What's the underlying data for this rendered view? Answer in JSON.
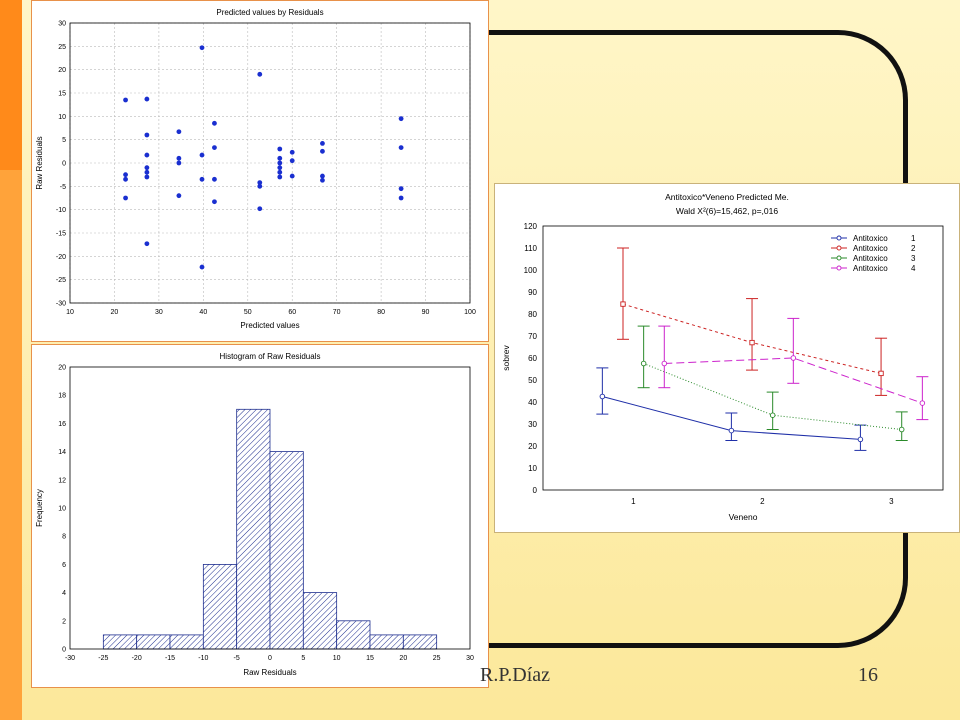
{
  "footer": {
    "author": "R.P.Díaz",
    "page": "16"
  },
  "chart_data": [
    {
      "type": "scatter",
      "title": "Predicted values by Residuals",
      "xlabel": "Predicted values",
      "ylabel": "Raw Residuals",
      "xlim": [
        10,
        100
      ],
      "ylim": [
        -30,
        30
      ],
      "xticks": [
        10,
        20,
        30,
        40,
        50,
        60,
        70,
        80,
        90,
        100
      ],
      "yticks": [
        -30,
        -25,
        -20,
        -15,
        -10,
        -5,
        0,
        5,
        10,
        15,
        20,
        25,
        30
      ],
      "grid": true,
      "points": [
        {
          "x": 22.5,
          "y": 13.5
        },
        {
          "x": 22.5,
          "y": -2.5
        },
        {
          "x": 22.5,
          "y": -3.5
        },
        {
          "x": 22.5,
          "y": -7.5
        },
        {
          "x": 27.3,
          "y": 13.7
        },
        {
          "x": 27.3,
          "y": 6.0
        },
        {
          "x": 27.3,
          "y": 1.7
        },
        {
          "x": 27.3,
          "y": -1.0
        },
        {
          "x": 27.3,
          "y": -2.0
        },
        {
          "x": 27.3,
          "y": -3.0
        },
        {
          "x": 27.3,
          "y": -17.3
        },
        {
          "x": 34.5,
          "y": 6.7
        },
        {
          "x": 34.5,
          "y": 1.0
        },
        {
          "x": 34.5,
          "y": 0.0
        },
        {
          "x": 34.5,
          "y": -7.0
        },
        {
          "x": 39.7,
          "y": 24.7
        },
        {
          "x": 39.7,
          "y": 1.7
        },
        {
          "x": 39.7,
          "y": -3.5
        },
        {
          "x": 39.7,
          "y": -22.3
        },
        {
          "x": 42.5,
          "y": 8.5
        },
        {
          "x": 42.5,
          "y": 3.3
        },
        {
          "x": 42.5,
          "y": -3.5
        },
        {
          "x": 42.5,
          "y": -8.3
        },
        {
          "x": 52.7,
          "y": 19.0
        },
        {
          "x": 52.7,
          "y": -4.2
        },
        {
          "x": 52.7,
          "y": -5.0
        },
        {
          "x": 52.7,
          "y": -9.8
        },
        {
          "x": 57.2,
          "y": 3.0
        },
        {
          "x": 57.2,
          "y": 1.0
        },
        {
          "x": 57.2,
          "y": 0.0
        },
        {
          "x": 57.2,
          "y": -1.0
        },
        {
          "x": 57.2,
          "y": -2.0
        },
        {
          "x": 57.2,
          "y": -3.0
        },
        {
          "x": 60.0,
          "y": 2.3
        },
        {
          "x": 60.0,
          "y": 0.5
        },
        {
          "x": 60.0,
          "y": -2.8
        },
        {
          "x": 66.8,
          "y": 4.2
        },
        {
          "x": 66.8,
          "y": 2.5
        },
        {
          "x": 66.8,
          "y": -2.8
        },
        {
          "x": 66.8,
          "y": -3.7
        },
        {
          "x": 84.5,
          "y": 9.5
        },
        {
          "x": 84.5,
          "y": 3.3
        },
        {
          "x": 84.5,
          "y": -5.5
        },
        {
          "x": 84.5,
          "y": -7.5
        }
      ]
    },
    {
      "type": "bar",
      "title": "Histogram of Raw Residuals",
      "xlabel": "Raw Residuals",
      "ylabel": "Frequency",
      "xlim": [
        -30,
        30
      ],
      "ylim": [
        0,
        20
      ],
      "xticks": [
        -30,
        -25,
        -20,
        -15,
        -10,
        -5,
        0,
        5,
        10,
        15,
        20,
        25,
        30
      ],
      "yticks": [
        0,
        2,
        4,
        6,
        8,
        10,
        12,
        14,
        16,
        18,
        20
      ],
      "bins": [
        {
          "from": -25,
          "to": -20,
          "count": 1
        },
        {
          "from": -20,
          "to": -15,
          "count": 1
        },
        {
          "from": -15,
          "to": -10,
          "count": 1
        },
        {
          "from": -10,
          "to": -5,
          "count": 6
        },
        {
          "from": -5,
          "to": 0,
          "count": 17
        },
        {
          "from": 0,
          "to": 5,
          "count": 14
        },
        {
          "from": 5,
          "to": 10,
          "count": 4
        },
        {
          "from": 10,
          "to": 15,
          "count": 2
        },
        {
          "from": 15,
          "to": 20,
          "count": 1
        },
        {
          "from": 20,
          "to": 25,
          "count": 1
        }
      ]
    },
    {
      "type": "line",
      "title": "Antitoxico*Veneno Predicted Me.",
      "subtitle": "Wald  X²(6)=15,462, p=,016",
      "xlabel": "Veneno",
      "ylabel": "sobrev",
      "xticks": [
        1,
        2,
        3
      ],
      "ylim": [
        0,
        120
      ],
      "yticks": [
        0,
        10,
        20,
        30,
        40,
        50,
        60,
        70,
        80,
        90,
        100,
        110,
        120
      ],
      "legend_position": "top-right",
      "series": [
        {
          "name": "Antitoxico",
          "level": "1",
          "color": "#1f2fa8",
          "dash": "",
          "offset": -0.24,
          "points": [
            {
              "x": 1,
              "y": 42.5,
              "lo": 34.5,
              "hi": 55.5
            },
            {
              "x": 2,
              "y": 27.0,
              "lo": 22.5,
              "hi": 35.0
            },
            {
              "x": 3,
              "y": 23.0,
              "lo": 18.0,
              "hi": 29.5
            }
          ]
        },
        {
          "name": "Antitoxico",
          "level": "2",
          "color": "#cc2222",
          "dash": "3,3",
          "offset": -0.08,
          "points": [
            {
              "x": 1,
              "y": 84.5,
              "lo": 68.5,
              "hi": 110.0
            },
            {
              "x": 2,
              "y": 67.0,
              "lo": 54.5,
              "hi": 87.0
            },
            {
              "x": 3,
              "y": 53.0,
              "lo": 43.0,
              "hi": 69.0
            }
          ]
        },
        {
          "name": "Antitoxico",
          "level": "3",
          "color": "#2a8a2a",
          "dash": "1,2",
          "offset": 0.08,
          "points": [
            {
              "x": 1,
              "y": 57.5,
              "lo": 46.5,
              "hi": 74.5
            },
            {
              "x": 2,
              "y": 34.0,
              "lo": 27.5,
              "hi": 44.5
            },
            {
              "x": 3,
              "y": 27.5,
              "lo": 22.5,
              "hi": 35.5
            }
          ]
        },
        {
          "name": "Antitoxico",
          "level": "4",
          "color": "#cc22cc",
          "dash": "8,4",
          "offset": 0.24,
          "points": [
            {
              "x": 1,
              "y": 57.5,
              "lo": 46.5,
              "hi": 74.5
            },
            {
              "x": 2,
              "y": 60.0,
              "lo": 48.5,
              "hi": 78.0
            },
            {
              "x": 3,
              "y": 39.5,
              "lo": 32.0,
              "hi": 51.5
            }
          ]
        }
      ]
    }
  ]
}
